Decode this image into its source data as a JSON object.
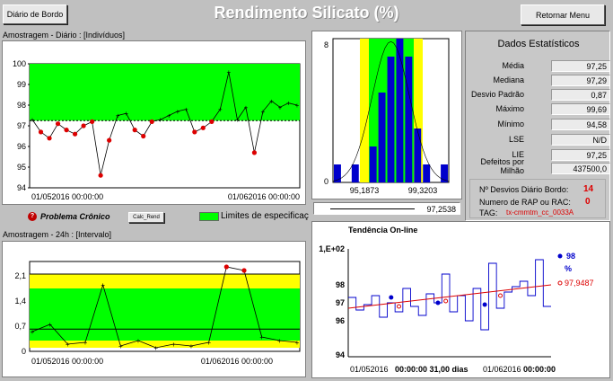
{
  "header": {
    "title": "Rendimento Silicato (%)",
    "diario_button": "Diário de Bordo",
    "retornar_button": "Retornar Menu"
  },
  "top_panel": {
    "label": "Amostragem - Diário : [Indivíduos]",
    "yticks": [
      "100",
      "99",
      "98",
      "97",
      "96",
      "95",
      "94"
    ],
    "xtick_left": "01/052016   00:00:00",
    "xtick_right": "01/062016   00:00:00"
  },
  "status_bar": {
    "chronic_label": "Problema Crônico",
    "calc_button": "Calc_Rend",
    "legend_label": "Limites de especificaç"
  },
  "bottom_panel": {
    "label": "Amostragem - 24h : [Intervalo]",
    "yticks": [
      "2,1",
      "1,4",
      "0,7",
      "0"
    ],
    "xtick_left": "01/052016   00:00:00",
    "xtick_right": "01/062016   00:00:00"
  },
  "histogram": {
    "ytick_top": "8",
    "ytick_bottom": "0",
    "x_left": "95,1873",
    "x_right": "99,3203",
    "bottom_value": "97,2538"
  },
  "stats": {
    "title": "Dados Estatísticos",
    "rows": [
      {
        "label": "Média",
        "value": "97,25"
      },
      {
        "label": "Mediana",
        "value": "97,29"
      },
      {
        "label": "Desvio Padrão",
        "value": "0,87"
      },
      {
        "label": "Máximo",
        "value": "99,69"
      },
      {
        "label": "Mínimo",
        "value": "94,58"
      },
      {
        "label": "LSE",
        "value": "N/D"
      },
      {
        "label": "LIE",
        "value": "97,25"
      },
      {
        "label": "Defeitos por Milhão",
        "value": "437500,0"
      }
    ],
    "desvios_label": "Nº Desvios Diário Bordo:",
    "desvios_value": "14",
    "rap_label": "Numero de RAP ou RAC:",
    "rap_value": "0",
    "tag_label": "TAG:",
    "tag_value": "tx-cmmtm_cc_0033A"
  },
  "trend": {
    "title": "Tendência On-line",
    "yticks": [
      "1,E+02",
      "98",
      "97",
      "96",
      "94"
    ],
    "legend_value1": "98",
    "legend_unit": "%",
    "legend_value2": "97,9487",
    "xlabel_left": "01/052016",
    "xlabel_mid": "00:00:00  31,00 dias",
    "xlabel_right": "01/062016",
    "xlabel_end": "00:00:00"
  },
  "colors": {
    "green": "#00ff00",
    "yellow": "#ffff00",
    "blue": "#0000cc",
    "red": "#dd0000"
  },
  "chart_data": [
    {
      "type": "line",
      "title": "Amostragem - Diário : [Indivíduos]",
      "ylim": [
        94,
        100
      ],
      "spec_lower": 97.25,
      "x": [
        "01/05",
        "02/05",
        "03/05",
        "04/05",
        "05/05",
        "06/05",
        "07/05",
        "08/05",
        "09/05",
        "10/05",
        "11/05",
        "12/05",
        "13/05",
        "14/05",
        "15/05",
        "16/05",
        "17/05",
        "18/05",
        "19/05",
        "20/05",
        "21/05",
        "22/05",
        "23/05",
        "24/05",
        "25/05",
        "26/05",
        "27/05",
        "28/05",
        "29/05",
        "30/05",
        "31/05",
        "01/06"
      ],
      "values": [
        97.3,
        96.7,
        96.4,
        97.1,
        96.8,
        96.6,
        97.0,
        97.2,
        94.6,
        96.3,
        97.5,
        97.6,
        96.8,
        96.5,
        97.2,
        97.3,
        97.5,
        97.7,
        97.8,
        96.7,
        96.9,
        97.2,
        97.8,
        99.6,
        97.3,
        97.9,
        95.7,
        97.7,
        98.2,
        97.9,
        98.1,
        98.0
      ],
      "out_of_spec_marked": true
    },
    {
      "type": "line",
      "title": "Amostragem - 24h : [Intervalo]",
      "ylim": [
        0,
        2.5
      ],
      "bands": {
        "lower_limit": 0.1,
        "green_top": 1.75,
        "yellow_top": 2.15,
        "centerline": 0.62
      },
      "values": [
        0.55,
        0.75,
        0.2,
        0.25,
        1.85,
        0.15,
        0.3,
        0.1,
        0.2,
        0.15,
        0.25,
        2.35,
        2.25,
        0.4,
        0.3,
        0.25
      ]
    },
    {
      "type": "bar",
      "title": "Histogram",
      "xlim": [
        95.1873,
        99.3203
      ],
      "ylim": [
        0,
        8
      ],
      "values": [
        1,
        0,
        1,
        0,
        2,
        5,
        7,
        8,
        7,
        3,
        1,
        0,
        1
      ]
    },
    {
      "type": "line",
      "title": "Tendência On-line",
      "ylim": [
        94,
        100
      ],
      "values": [
        97.3,
        96.6,
        96.9,
        97.4,
        96.2,
        97.0,
        96.5,
        97.8,
        96.8,
        96.3,
        97.5,
        97.0,
        98.6,
        96.5,
        97.4,
        96.0,
        97.8,
        95.5,
        99.2,
        96.7,
        97.6,
        97.9,
        98.2,
        97.4,
        99.4,
        96.8
      ],
      "trend_start": 96.7,
      "trend_end": 98.0
    }
  ]
}
